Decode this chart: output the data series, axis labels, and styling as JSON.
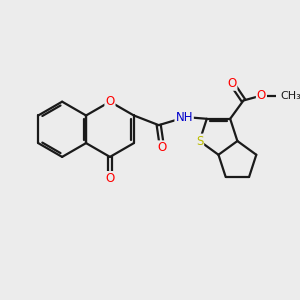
{
  "background_color": "#ececec",
  "bond_color": "#1a1a1a",
  "bond_width": 1.6,
  "atom_colors": {
    "O": "#ff0000",
    "N": "#0000cc",
    "S": "#bbbb00",
    "C": "#1a1a1a",
    "H": "#1a1a1a"
  },
  "font_size": 8.5,
  "fig_width": 3.0,
  "fig_height": 3.0,
  "xlim": [
    0,
    10
  ],
  "ylim": [
    0,
    10
  ]
}
